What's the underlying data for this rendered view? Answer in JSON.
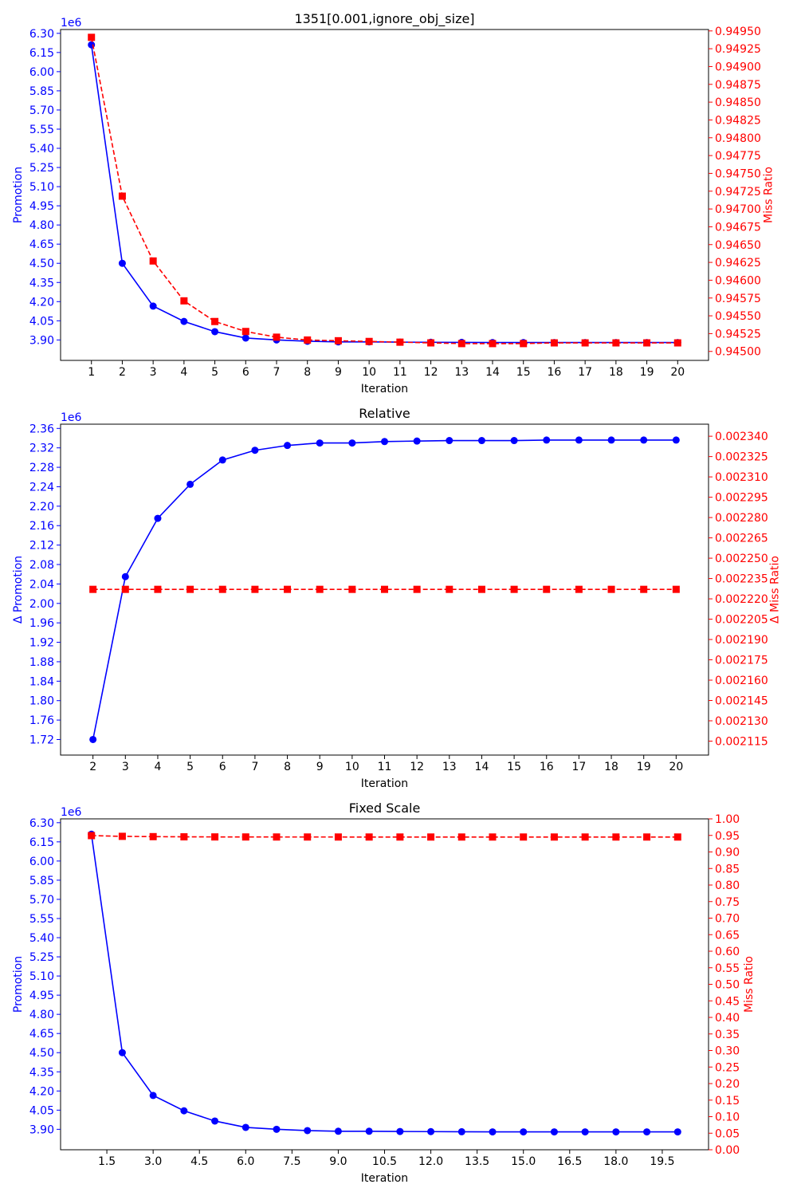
{
  "colors": {
    "promotion": "#0000ff",
    "miss_ratio": "#ff0000",
    "axis": "#000000"
  },
  "chart_data": [
    {
      "type": "line",
      "title": "1351[0.001,ignore_obj_size]",
      "xlabel": "Iteration",
      "y_left_label": "Promotion",
      "y_right_label": "Miss Ratio",
      "y_left_multiplier": "1e6",
      "x": [
        1,
        2,
        3,
        4,
        5,
        6,
        7,
        8,
        9,
        10,
        11,
        12,
        13,
        14,
        15,
        16,
        17,
        18,
        19,
        20
      ],
      "xlim": [
        0,
        21
      ],
      "x_ticks": [
        1,
        2,
        3,
        4,
        5,
        6,
        7,
        8,
        9,
        10,
        11,
        12,
        13,
        14,
        15,
        16,
        17,
        18,
        19,
        20
      ],
      "x_tick_labels": [
        "1",
        "2",
        "3",
        "4",
        "5",
        "6",
        "7",
        "8",
        "9",
        "10",
        "11",
        "12",
        "13",
        "14",
        "15",
        "16",
        "17",
        "18",
        "19",
        "20"
      ],
      "y_left_lim": [
        3.74,
        6.33
      ],
      "y_left_ticks": [
        3.9,
        4.05,
        4.2,
        4.35,
        4.5,
        4.65,
        4.8,
        4.95,
        5.1,
        5.25,
        5.4,
        5.55,
        5.7,
        5.85,
        6.0,
        6.15,
        6.3
      ],
      "y_left_tick_labels": [
        "3.90",
        "4.05",
        "4.20",
        "4.35",
        "4.50",
        "4.65",
        "4.80",
        "4.95",
        "5.10",
        "5.25",
        "5.40",
        "5.55",
        "5.70",
        "5.85",
        "6.00",
        "6.15",
        "6.30"
      ],
      "y_right_lim": [
        0.944874,
        0.94952
      ],
      "y_right_ticks": [
        0.945,
        0.94525,
        0.9455,
        0.94575,
        0.946,
        0.94625,
        0.9465,
        0.94675,
        0.947,
        0.94725,
        0.9475,
        0.94775,
        0.948,
        0.94825,
        0.9485,
        0.94875,
        0.949,
        0.94925,
        0.9495
      ],
      "y_right_tick_labels": [
        "0.94500",
        "0.94525",
        "0.94550",
        "0.94575",
        "0.94600",
        "0.94625",
        "0.94650",
        "0.94675",
        "0.94700",
        "0.94725",
        "0.94750",
        "0.94775",
        "0.94800",
        "0.94825",
        "0.94850",
        "0.94875",
        "0.94900",
        "0.94925",
        "0.94950"
      ],
      "series": [
        {
          "axis": "left",
          "style": "solid-circle",
          "values": [
            6.21,
            4.5,
            4.165,
            4.045,
            3.965,
            3.915,
            3.9,
            3.89,
            3.885,
            3.885,
            3.883,
            3.882,
            3.881,
            3.88,
            3.88,
            3.88,
            3.88,
            3.88,
            3.88,
            3.88
          ]
        },
        {
          "axis": "right",
          "style": "dashed-square",
          "values": [
            0.94941,
            0.94718,
            0.94627,
            0.94571,
            0.94542,
            0.94528,
            0.9452,
            0.94516,
            0.94515,
            0.94514,
            0.94513,
            0.94512,
            0.94511,
            0.94511,
            0.94511,
            0.94512,
            0.94512,
            0.94512,
            0.94512,
            0.94512
          ]
        }
      ]
    },
    {
      "type": "line",
      "title": "Relative",
      "xlabel": "Iteration",
      "y_left_label": "Δ Promotion",
      "y_right_label": "Δ Miss Ratio",
      "y_left_multiplier": "1e6",
      "x": [
        2,
        3,
        4,
        5,
        6,
        7,
        8,
        9,
        10,
        11,
        12,
        13,
        14,
        15,
        16,
        17,
        18,
        19,
        20
      ],
      "xlim": [
        1,
        21
      ],
      "x_ticks": [
        2,
        3,
        4,
        5,
        6,
        7,
        8,
        9,
        10,
        11,
        12,
        13,
        14,
        15,
        16,
        17,
        18,
        19,
        20
      ],
      "x_tick_labels": [
        "2",
        "3",
        "4",
        "5",
        "6",
        "7",
        "8",
        "9",
        "10",
        "11",
        "12",
        "13",
        "14",
        "15",
        "16",
        "17",
        "18",
        "19",
        "20"
      ],
      "y_left_lim": [
        1.688,
        2.3687
      ],
      "y_left_ticks": [
        1.72,
        1.76,
        1.8,
        1.84,
        1.88,
        1.92,
        1.96,
        2.0,
        2.04,
        2.08,
        2.12,
        2.16,
        2.2,
        2.24,
        2.28,
        2.32,
        2.36
      ],
      "y_left_tick_labels": [
        "1.72",
        "1.76",
        "1.80",
        "1.84",
        "1.88",
        "1.92",
        "1.96",
        "2.00",
        "2.04",
        "2.08",
        "2.12",
        "2.16",
        "2.20",
        "2.24",
        "2.28",
        "2.32",
        "2.36"
      ],
      "y_right_lim": [
        0.0021047,
        0.0023489
      ],
      "y_right_ticks": [
        0.002115,
        0.00213,
        0.002145,
        0.00216,
        0.002175,
        0.00219,
        0.002205,
        0.00222,
        0.002235,
        0.00225,
        0.002265,
        0.00228,
        0.002295,
        0.00231,
        0.002325,
        0.00234
      ],
      "y_right_tick_labels": [
        "0.002115",
        "0.002130",
        "0.002145",
        "0.002160",
        "0.002175",
        "0.002190",
        "0.002205",
        "0.002220",
        "0.002235",
        "0.002250",
        "0.002265",
        "0.002280",
        "0.002295",
        "0.002310",
        "0.002325",
        "0.002340"
      ],
      "series": [
        {
          "axis": "left",
          "style": "solid-circle",
          "values": [
            1.72,
            2.055,
            2.175,
            2.245,
            2.295,
            2.315,
            2.325,
            2.33,
            2.33,
            2.333,
            2.334,
            2.335,
            2.335,
            2.335,
            2.336,
            2.336,
            2.336,
            2.336,
            2.336
          ]
        },
        {
          "axis": "right",
          "style": "dashed-square",
          "values": [
            0.002227,
            0.002227,
            0.002227,
            0.002227,
            0.002227,
            0.002227,
            0.002227,
            0.002227,
            0.002227,
            0.002227,
            0.002227,
            0.002227,
            0.002227,
            0.002227,
            0.002227,
            0.002227,
            0.002227,
            0.002227,
            0.002227
          ]
        }
      ]
    },
    {
      "type": "line",
      "title": "Fixed Scale",
      "xlabel": "Iteration",
      "y_left_label": "Promotion",
      "y_right_label": "Miss Ratio",
      "y_left_multiplier": "1e6",
      "x": [
        1,
        2,
        3,
        4,
        5,
        6,
        7,
        8,
        9,
        10,
        11,
        12,
        13,
        14,
        15,
        16,
        17,
        18,
        19,
        20
      ],
      "xlim": [
        0,
        21
      ],
      "x_ticks": [
        1.5,
        3.0,
        4.5,
        6.0,
        7.5,
        9.0,
        10.5,
        12.0,
        13.5,
        15.0,
        16.5,
        18.0,
        19.5
      ],
      "x_tick_labels": [
        "1.5",
        "3.0",
        "4.5",
        "6.0",
        "7.5",
        "9.0",
        "10.5",
        "12.0",
        "13.5",
        "15.0",
        "16.5",
        "18.0",
        "19.5"
      ],
      "y_left_lim": [
        3.74,
        6.33
      ],
      "y_left_ticks": [
        3.9,
        4.05,
        4.2,
        4.35,
        4.5,
        4.65,
        4.8,
        4.95,
        5.1,
        5.25,
        5.4,
        5.55,
        5.7,
        5.85,
        6.0,
        6.15,
        6.3
      ],
      "y_left_tick_labels": [
        "3.90",
        "4.05",
        "4.20",
        "4.35",
        "4.50",
        "4.65",
        "4.80",
        "4.95",
        "5.10",
        "5.25",
        "5.40",
        "5.55",
        "5.70",
        "5.85",
        "6.00",
        "6.15",
        "6.30"
      ],
      "y_right_lim": [
        0,
        1
      ],
      "y_right_ticks": [
        0,
        0.05,
        0.1,
        0.15,
        0.2,
        0.25,
        0.3,
        0.35,
        0.4,
        0.45,
        0.5,
        0.55,
        0.6,
        0.65,
        0.7,
        0.75,
        0.8,
        0.85,
        0.9,
        0.95,
        1.0
      ],
      "y_right_tick_labels": [
        "0.00",
        "0.05",
        "0.10",
        "0.15",
        "0.20",
        "0.25",
        "0.30",
        "0.35",
        "0.40",
        "0.45",
        "0.50",
        "0.55",
        "0.60",
        "0.65",
        "0.70",
        "0.75",
        "0.80",
        "0.85",
        "0.90",
        "0.95",
        "1.00"
      ],
      "series": [
        {
          "axis": "left",
          "style": "solid-circle",
          "values": [
            6.21,
            4.5,
            4.165,
            4.045,
            3.965,
            3.915,
            3.9,
            3.89,
            3.885,
            3.885,
            3.883,
            3.882,
            3.881,
            3.88,
            3.88,
            3.88,
            3.88,
            3.88,
            3.88,
            3.88
          ]
        },
        {
          "axis": "right",
          "style": "dashed-square",
          "values": [
            0.94941,
            0.94718,
            0.94627,
            0.94571,
            0.94542,
            0.94528,
            0.9452,
            0.94516,
            0.94515,
            0.94514,
            0.94513,
            0.94512,
            0.94511,
            0.94511,
            0.94511,
            0.94512,
            0.94512,
            0.94512,
            0.94512,
            0.94512
          ]
        }
      ]
    }
  ]
}
